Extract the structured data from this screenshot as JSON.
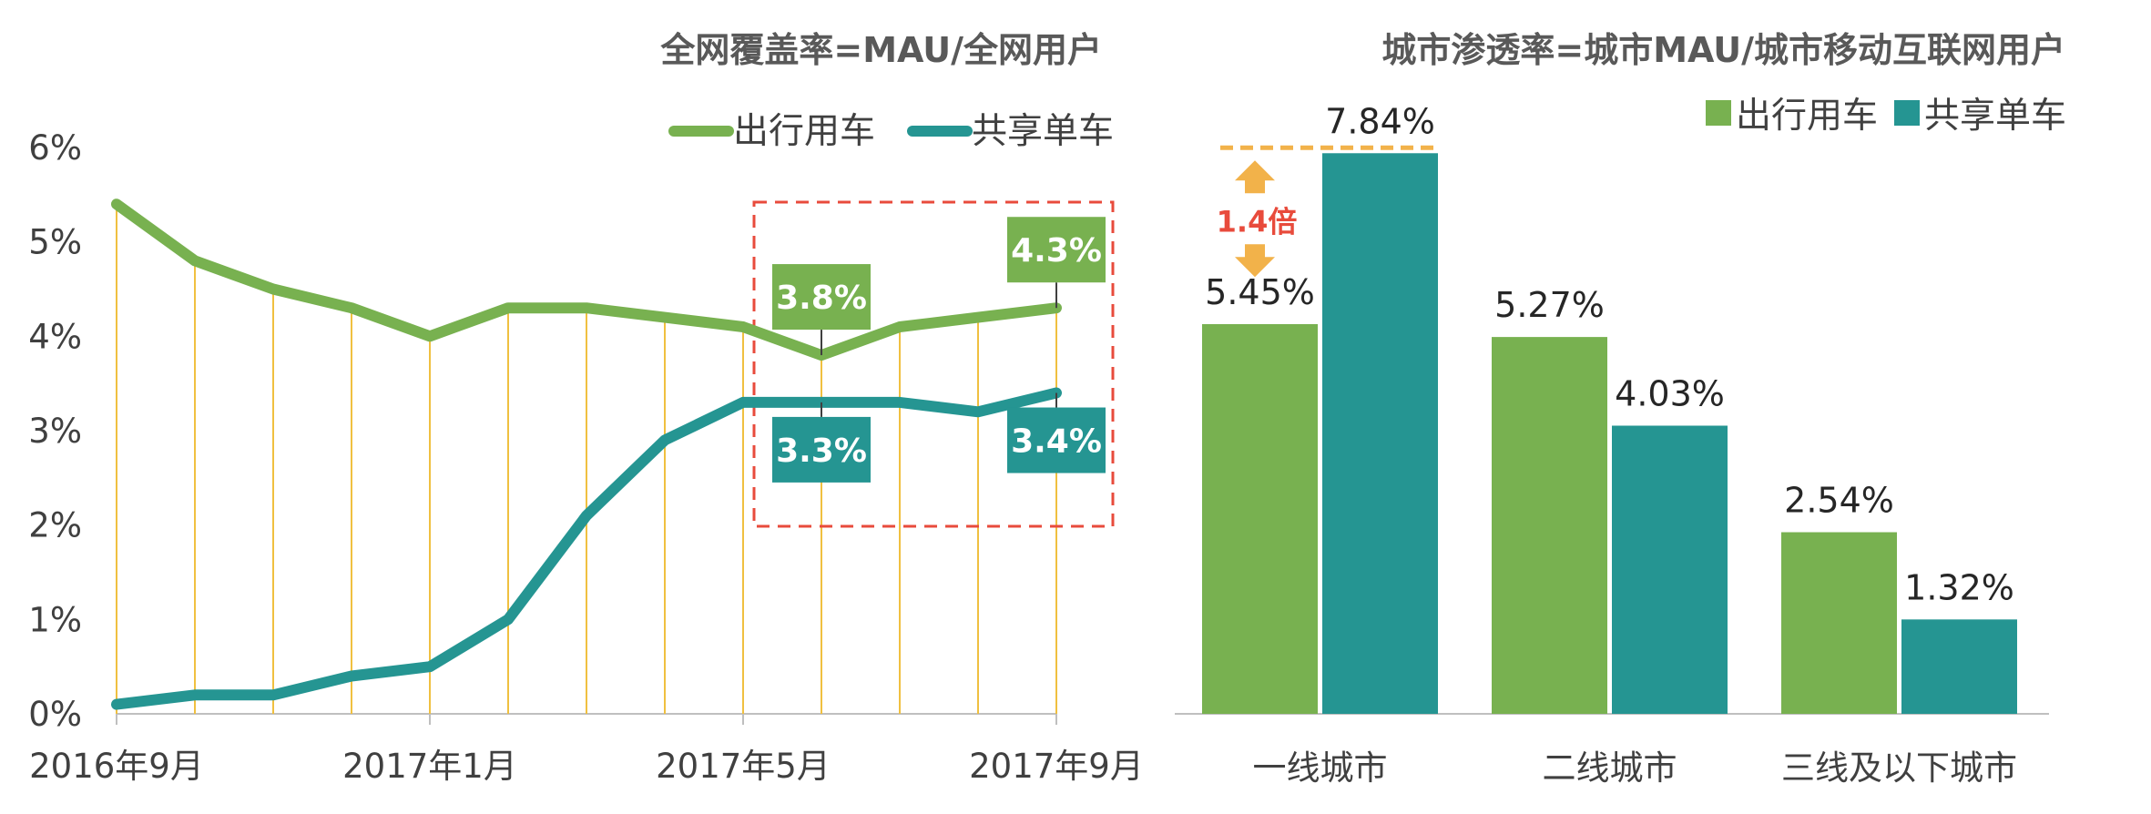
{
  "colors": {
    "green": "#78b150",
    "teal": "#259592",
    "axis": "#bfbfbf",
    "guide": "#f0c040",
    "highlight": "#e84b3c",
    "ratio_arrow": "#f2b24a",
    "ratio_text": "#e84b3c"
  },
  "chart_data": [
    {
      "type": "line",
      "title": "全网覆盖率=MAU/全网用户",
      "y_ticks": [
        "0%",
        "1%",
        "2%",
        "3%",
        "4%",
        "5%",
        "6%"
      ],
      "ylim": [
        0,
        6
      ],
      "x_tick_labels": [
        "2016年9月",
        "2017年1月",
        "2017年5月",
        "2017年9月"
      ],
      "x_tick_indices": [
        0,
        4,
        8,
        12
      ],
      "n_points": 13,
      "series": [
        {
          "name": "出行用车",
          "color": "#78b150",
          "values": [
            5.4,
            4.8,
            4.5,
            4.3,
            4.0,
            4.3,
            4.3,
            4.2,
            4.1,
            3.8,
            4.1,
            4.2,
            4.3
          ]
        },
        {
          "name": "共享单车",
          "color": "#259592",
          "values": [
            0.1,
            0.2,
            0.2,
            0.4,
            0.5,
            1.0,
            2.1,
            2.9,
            3.3,
            3.3,
            3.3,
            3.2,
            3.4
          ]
        }
      ],
      "annotations": [
        {
          "label": "3.8%",
          "series": 0,
          "index": 9
        },
        {
          "label": "4.3%",
          "series": 0,
          "index": 12
        },
        {
          "label": "3.3%",
          "series": 1,
          "index": 9
        },
        {
          "label": "3.4%",
          "series": 1,
          "index": 12
        }
      ],
      "highlight_range": [
        8,
        12
      ],
      "legend": "top-right"
    },
    {
      "type": "bar",
      "title": "城市渗透率=城市MAU/城市移动互联网用户",
      "categories": [
        "一线城市",
        "二线城市",
        "三线及以下城市"
      ],
      "series": [
        {
          "name": "出行用车",
          "color": "#78b150",
          "values": [
            5.45,
            5.27,
            2.54
          ],
          "labels": [
            "5.45%",
            "5.27%",
            "2.54%"
          ]
        },
        {
          "name": "共享单车",
          "color": "#259592",
          "values": [
            7.84,
            4.03,
            1.32
          ],
          "labels": [
            "7.84%",
            "4.03%",
            "1.32%"
          ]
        }
      ],
      "ratio_annotation": "1.4倍",
      "ylim": [
        0,
        8.2
      ],
      "legend": "top-right"
    }
  ]
}
